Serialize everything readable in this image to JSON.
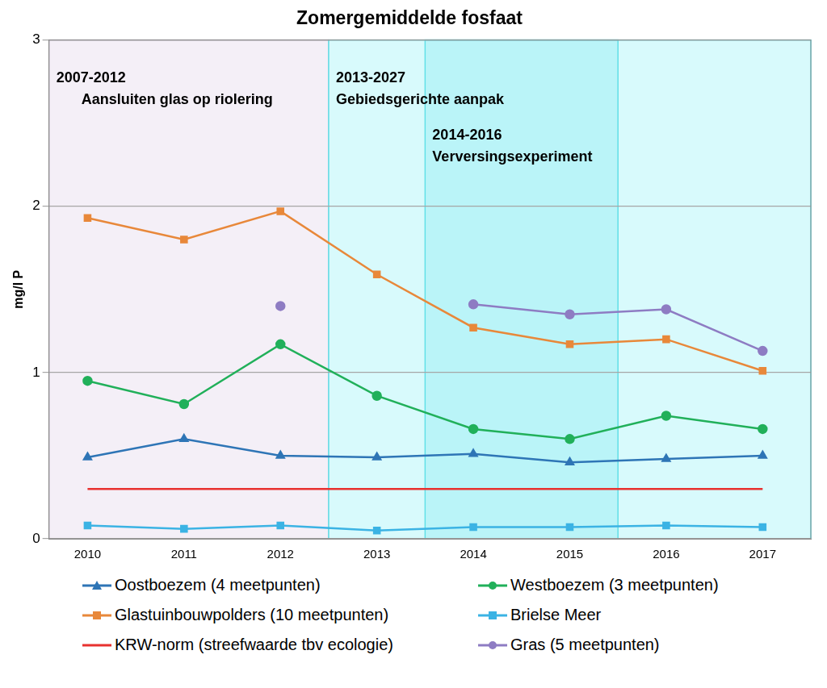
{
  "chart_data": {
    "type": "line",
    "title": "Zomergemiddelde fosfaat",
    "y_label": "mg/l P",
    "x": [
      2010,
      2011,
      2012,
      2013,
      2014,
      2015,
      2016,
      2017
    ],
    "xlim": [
      2009.6,
      2017.5
    ],
    "xticks": [
      2010,
      2011,
      2012,
      2013,
      2014,
      2015,
      2016,
      2017
    ],
    "ylim": [
      0,
      3
    ],
    "yticks": [
      0,
      1,
      2,
      3
    ],
    "grid": true,
    "legend": "bottom",
    "series": [
      {
        "name": "Oostboezem (4 meetpunten)",
        "color": "#2e75b6",
        "marker": "triangle",
        "line_style": "solid",
        "values": [
          0.49,
          0.6,
          0.5,
          0.49,
          0.51,
          0.46,
          0.48,
          0.5
        ]
      },
      {
        "name": "Westboezem (3 meetpunten)",
        "color": "#21b05a",
        "marker": "circle",
        "line_style": "solid",
        "values": [
          0.95,
          0.81,
          1.17,
          0.86,
          0.66,
          0.6,
          0.74,
          0.66
        ]
      },
      {
        "name": "Glastuinbouwpolders (10 meetpunten)",
        "color": "#e8883a",
        "marker": "square",
        "line_style": "solid",
        "values": [
          1.93,
          1.8,
          1.97,
          1.59,
          1.27,
          1.17,
          1.2,
          1.01
        ]
      },
      {
        "name": "Brielse Meer",
        "color": "#3bb3e4",
        "marker": "square",
        "line_style": "solid",
        "values": [
          0.08,
          0.06,
          0.08,
          0.05,
          0.07,
          0.07,
          0.08,
          0.07
        ]
      },
      {
        "name": "KRW-norm (streefwaarde tbv ecologie)",
        "color": "#e8312f",
        "marker": "none",
        "line_style": "solid",
        "values": [
          0.3,
          0.3,
          0.3,
          0.3,
          0.3,
          0.3,
          0.3,
          0.3
        ]
      },
      {
        "name": "Gras (5 meetpunten)",
        "color": "#8e7cc3",
        "marker": "circle",
        "line_style": "solid",
        "values": [
          null,
          null,
          1.4,
          null,
          1.41,
          1.35,
          1.38,
          1.13
        ]
      }
    ],
    "periods": [
      {
        "label": "2007-2012",
        "text": "Aansluiten glas op riolering",
        "from": 2009.6,
        "to": 2012.5
      },
      {
        "label": "2013-2027",
        "text": "Gebiedsgerichte aanpak",
        "from": 2012.5,
        "to": 2017.5
      },
      {
        "label": "2014-2016",
        "text": "Verversingsexperiment",
        "from": 2013.5,
        "to": 2015.5
      }
    ]
  }
}
